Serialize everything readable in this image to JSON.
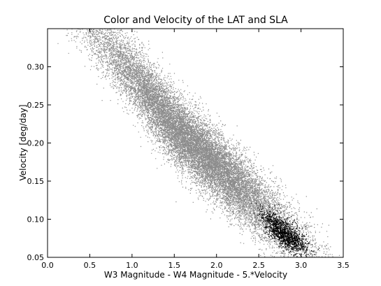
{
  "chart_data": {
    "type": "scatter",
    "title": "Color and Velocity of the LAT and SLA",
    "xlabel": "W3 Magnitude - W4 Magnitude - 5.*Velocity",
    "ylabel": "Velocity [deg/day]",
    "xlim": [
      0.0,
      3.5
    ],
    "ylim": [
      0.05,
      0.35
    ],
    "xticks": [
      "0.0",
      "0.5",
      "1.0",
      "1.5",
      "2.0",
      "2.5",
      "3.0",
      "3.5"
    ],
    "yticks": [
      "0.05",
      "0.10",
      "0.15",
      "0.20",
      "0.25",
      "0.30"
    ],
    "grid": false,
    "legend": false,
    "series": [
      {
        "color": "#8c8c8c",
        "count": 18000,
        "trend": [
          {
            "x": 0.5,
            "y": 0.35
          },
          {
            "x": 1.0,
            "y": 0.29
          },
          {
            "x": 1.5,
            "y": 0.22
          },
          {
            "x": 2.0,
            "y": 0.17
          },
          {
            "x": 2.5,
            "y": 0.12
          },
          {
            "x": 3.0,
            "y": 0.07
          }
        ]
      },
      {
        "color": "#000000",
        "count": 1400,
        "trend": [
          {
            "x": 2.4,
            "y": 0.12
          },
          {
            "x": 2.6,
            "y": 0.1
          },
          {
            "x": 2.8,
            "y": 0.08
          },
          {
            "x": 3.0,
            "y": 0.07
          },
          {
            "x": 3.1,
            "y": 0.06
          }
        ]
      }
    ]
  }
}
